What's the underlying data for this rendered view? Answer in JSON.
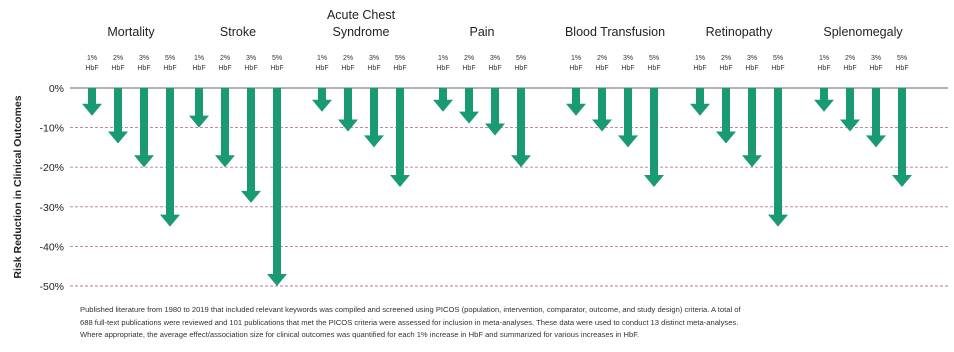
{
  "colors": {
    "arrow": "#1a9a72",
    "gridline": "#b87a8c",
    "axis": "#333333"
  },
  "footnote_lines": [
    "Published literature from 1980 to 2019 that included relevant keywords was compiled and screened using PICOS (population, intervention, comparator, outcome, and study design) criteria. A total of",
    "688 full-text publications were reviewed and 101 publications that met the PICOS criteria were assessed for inclusion in meta-analyses. These data were used to conduct 13 distinct meta-analyses.",
    "Where appropriate, the average effect/association size for clinical outcomes was quantified for each 1% increase in HbF and summarized for various increases in HbF."
  ],
  "chart_data": {
    "type": "bar",
    "orientation": "vertical-downward-arrows",
    "ylabel": "Risk Reduction in Clinical Outcomes",
    "ylim": [
      -50,
      0
    ],
    "yticks": [
      0,
      -10,
      -20,
      -30,
      -40,
      -50
    ],
    "ytick_labels": [
      "0%",
      "-10%",
      "-20%",
      "-30%",
      "-40%",
      "-50%"
    ],
    "grid": "horizontal dashed at each 10%",
    "categories": [
      "1%\nHbF",
      "2%\nHbF",
      "3%\nHbF",
      "5%\nHbF"
    ],
    "groups": [
      {
        "name": "Mortality",
        "values": [
          -7,
          -14,
          -20,
          -35
        ]
      },
      {
        "name": "Stroke",
        "values": [
          -10,
          -20,
          -29,
          -50
        ]
      },
      {
        "name": "Acute Chest\nSyndrome",
        "values": [
          -6,
          -11,
          -15,
          -25
        ]
      },
      {
        "name": "Pain",
        "values": [
          -6,
          -9,
          -12,
          -20
        ]
      },
      {
        "name": "Blood Transfusion",
        "values": [
          -7,
          -11,
          -15,
          -25
        ]
      },
      {
        "name": "Retinopathy",
        "values": [
          -7,
          -14,
          -20,
          -35
        ]
      },
      {
        "name": "Splenomegaly",
        "values": [
          -6,
          -11,
          -15,
          -25
        ]
      }
    ]
  }
}
